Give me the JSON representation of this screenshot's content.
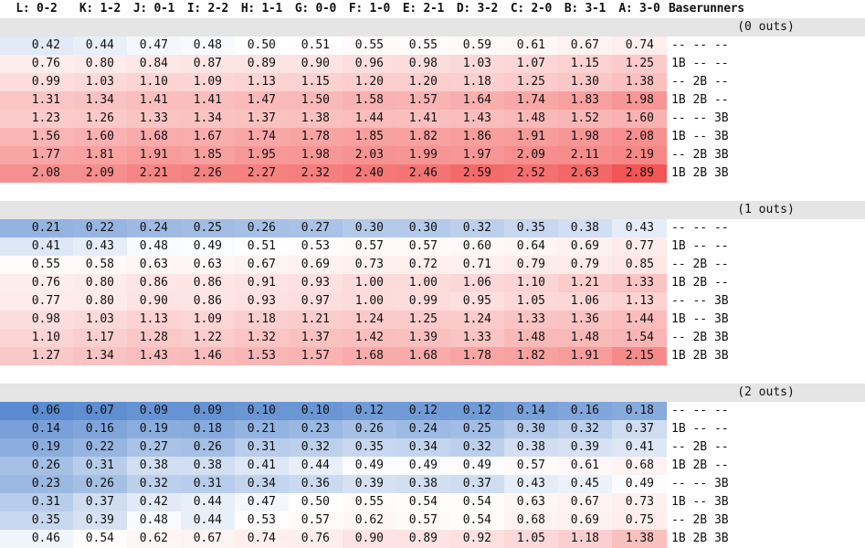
{
  "chart_data": {
    "type": "heatmap",
    "columns": [
      "L: 0-2",
      "K: 1-2",
      "J: 0-1",
      "I: 2-2",
      "H: 1-1",
      "G: 0-0",
      "F: 1-0",
      "E: 2-1",
      "D: 3-2",
      "C: 2-0",
      "B: 3-1",
      "A: 3-0"
    ],
    "baserunner_header": "Baserunners",
    "color_scale": {
      "low": "#5b8bd0",
      "mid": "#ffffff",
      "high": "#f25555",
      "midpoint": 0.5,
      "min": 0.06,
      "max": 2.89
    },
    "sections": [
      {
        "label": "(0 outs)",
        "rows": [
          {
            "runners": "-- -- --",
            "values": [
              0.42,
              0.44,
              0.47,
              0.48,
              0.5,
              0.51,
              0.55,
              0.55,
              0.59,
              0.61,
              0.67,
              0.74
            ]
          },
          {
            "runners": "1B -- --",
            "values": [
              0.76,
              0.8,
              0.84,
              0.87,
              0.89,
              0.9,
              0.96,
              0.98,
              1.03,
              1.07,
              1.15,
              1.25
            ]
          },
          {
            "runners": "-- 2B --",
            "values": [
              0.99,
              1.03,
              1.1,
              1.09,
              1.13,
              1.15,
              1.2,
              1.2,
              1.18,
              1.25,
              1.3,
              1.38
            ]
          },
          {
            "runners": "1B 2B --",
            "values": [
              1.31,
              1.34,
              1.41,
              1.41,
              1.47,
              1.5,
              1.58,
              1.57,
              1.64,
              1.74,
              1.83,
              1.98
            ]
          },
          {
            "runners": "-- -- 3B",
            "values": [
              1.23,
              1.26,
              1.33,
              1.34,
              1.37,
              1.38,
              1.44,
              1.41,
              1.43,
              1.48,
              1.52,
              1.6
            ]
          },
          {
            "runners": "1B -- 3B",
            "values": [
              1.56,
              1.6,
              1.68,
              1.67,
              1.74,
              1.78,
              1.85,
              1.82,
              1.86,
              1.91,
              1.98,
              2.08
            ]
          },
          {
            "runners": "-- 2B 3B",
            "values": [
              1.77,
              1.81,
              1.91,
              1.85,
              1.95,
              1.98,
              2.03,
              1.99,
              1.97,
              2.09,
              2.11,
              2.19
            ]
          },
          {
            "runners": "1B 2B 3B",
            "values": [
              2.08,
              2.09,
              2.21,
              2.26,
              2.27,
              2.32,
              2.4,
              2.46,
              2.59,
              2.52,
              2.63,
              2.89
            ]
          }
        ]
      },
      {
        "label": "(1 outs)",
        "rows": [
          {
            "runners": "-- -- --",
            "values": [
              0.21,
              0.22,
              0.24,
              0.25,
              0.26,
              0.27,
              0.3,
              0.3,
              0.32,
              0.35,
              0.38,
              0.43
            ]
          },
          {
            "runners": "1B -- --",
            "values": [
              0.41,
              0.43,
              0.48,
              0.49,
              0.51,
              0.53,
              0.57,
              0.57,
              0.6,
              0.64,
              0.69,
              0.77
            ]
          },
          {
            "runners": "-- 2B --",
            "values": [
              0.55,
              0.58,
              0.63,
              0.63,
              0.67,
              0.69,
              0.73,
              0.72,
              0.71,
              0.79,
              0.79,
              0.85
            ]
          },
          {
            "runners": "1B 2B --",
            "values": [
              0.76,
              0.8,
              0.86,
              0.86,
              0.91,
              0.93,
              1.0,
              1.0,
              1.06,
              1.1,
              1.21,
              1.33
            ]
          },
          {
            "runners": "-- -- 3B",
            "values": [
              0.77,
              0.8,
              0.9,
              0.86,
              0.93,
              0.97,
              1.0,
              0.99,
              0.95,
              1.05,
              1.06,
              1.13
            ]
          },
          {
            "runners": "1B -- 3B",
            "values": [
              0.98,
              1.03,
              1.13,
              1.09,
              1.18,
              1.21,
              1.24,
              1.25,
              1.24,
              1.33,
              1.36,
              1.44
            ]
          },
          {
            "runners": "-- 2B 3B",
            "values": [
              1.1,
              1.17,
              1.28,
              1.22,
              1.32,
              1.37,
              1.42,
              1.39,
              1.33,
              1.48,
              1.48,
              1.54
            ]
          },
          {
            "runners": "1B 2B 3B",
            "values": [
              1.27,
              1.34,
              1.43,
              1.46,
              1.53,
              1.57,
              1.68,
              1.68,
              1.78,
              1.82,
              1.91,
              2.15
            ]
          }
        ]
      },
      {
        "label": "(2 outs)",
        "rows": [
          {
            "runners": "-- -- --",
            "values": [
              0.06,
              0.07,
              0.09,
              0.09,
              0.1,
              0.1,
              0.12,
              0.12,
              0.12,
              0.14,
              0.16,
              0.18
            ]
          },
          {
            "runners": "1B -- --",
            "values": [
              0.14,
              0.16,
              0.19,
              0.18,
              0.21,
              0.23,
              0.26,
              0.24,
              0.25,
              0.3,
              0.32,
              0.37
            ]
          },
          {
            "runners": "-- 2B --",
            "values": [
              0.19,
              0.22,
              0.27,
              0.26,
              0.31,
              0.32,
              0.35,
              0.34,
              0.32,
              0.38,
              0.39,
              0.41
            ]
          },
          {
            "runners": "1B 2B --",
            "values": [
              0.26,
              0.31,
              0.38,
              0.38,
              0.41,
              0.44,
              0.49,
              0.49,
              0.49,
              0.57,
              0.61,
              0.68
            ]
          },
          {
            "runners": "-- -- 3B",
            "values": [
              0.23,
              0.26,
              0.32,
              0.31,
              0.34,
              0.36,
              0.39,
              0.38,
              0.37,
              0.43,
              0.45,
              0.49
            ]
          },
          {
            "runners": "1B -- 3B",
            "values": [
              0.31,
              0.37,
              0.42,
              0.44,
              0.47,
              0.5,
              0.55,
              0.54,
              0.54,
              0.63,
              0.67,
              0.73
            ]
          },
          {
            "runners": "-- 2B 3B",
            "values": [
              0.35,
              0.39,
              0.48,
              0.44,
              0.53,
              0.57,
              0.62,
              0.57,
              0.54,
              0.68,
              0.69,
              0.75
            ]
          },
          {
            "runners": "1B 2B 3B",
            "values": [
              0.46,
              0.54,
              0.62,
              0.67,
              0.74,
              0.76,
              0.9,
              0.89,
              0.92,
              1.05,
              1.18,
              1.38
            ]
          }
        ]
      }
    ]
  }
}
